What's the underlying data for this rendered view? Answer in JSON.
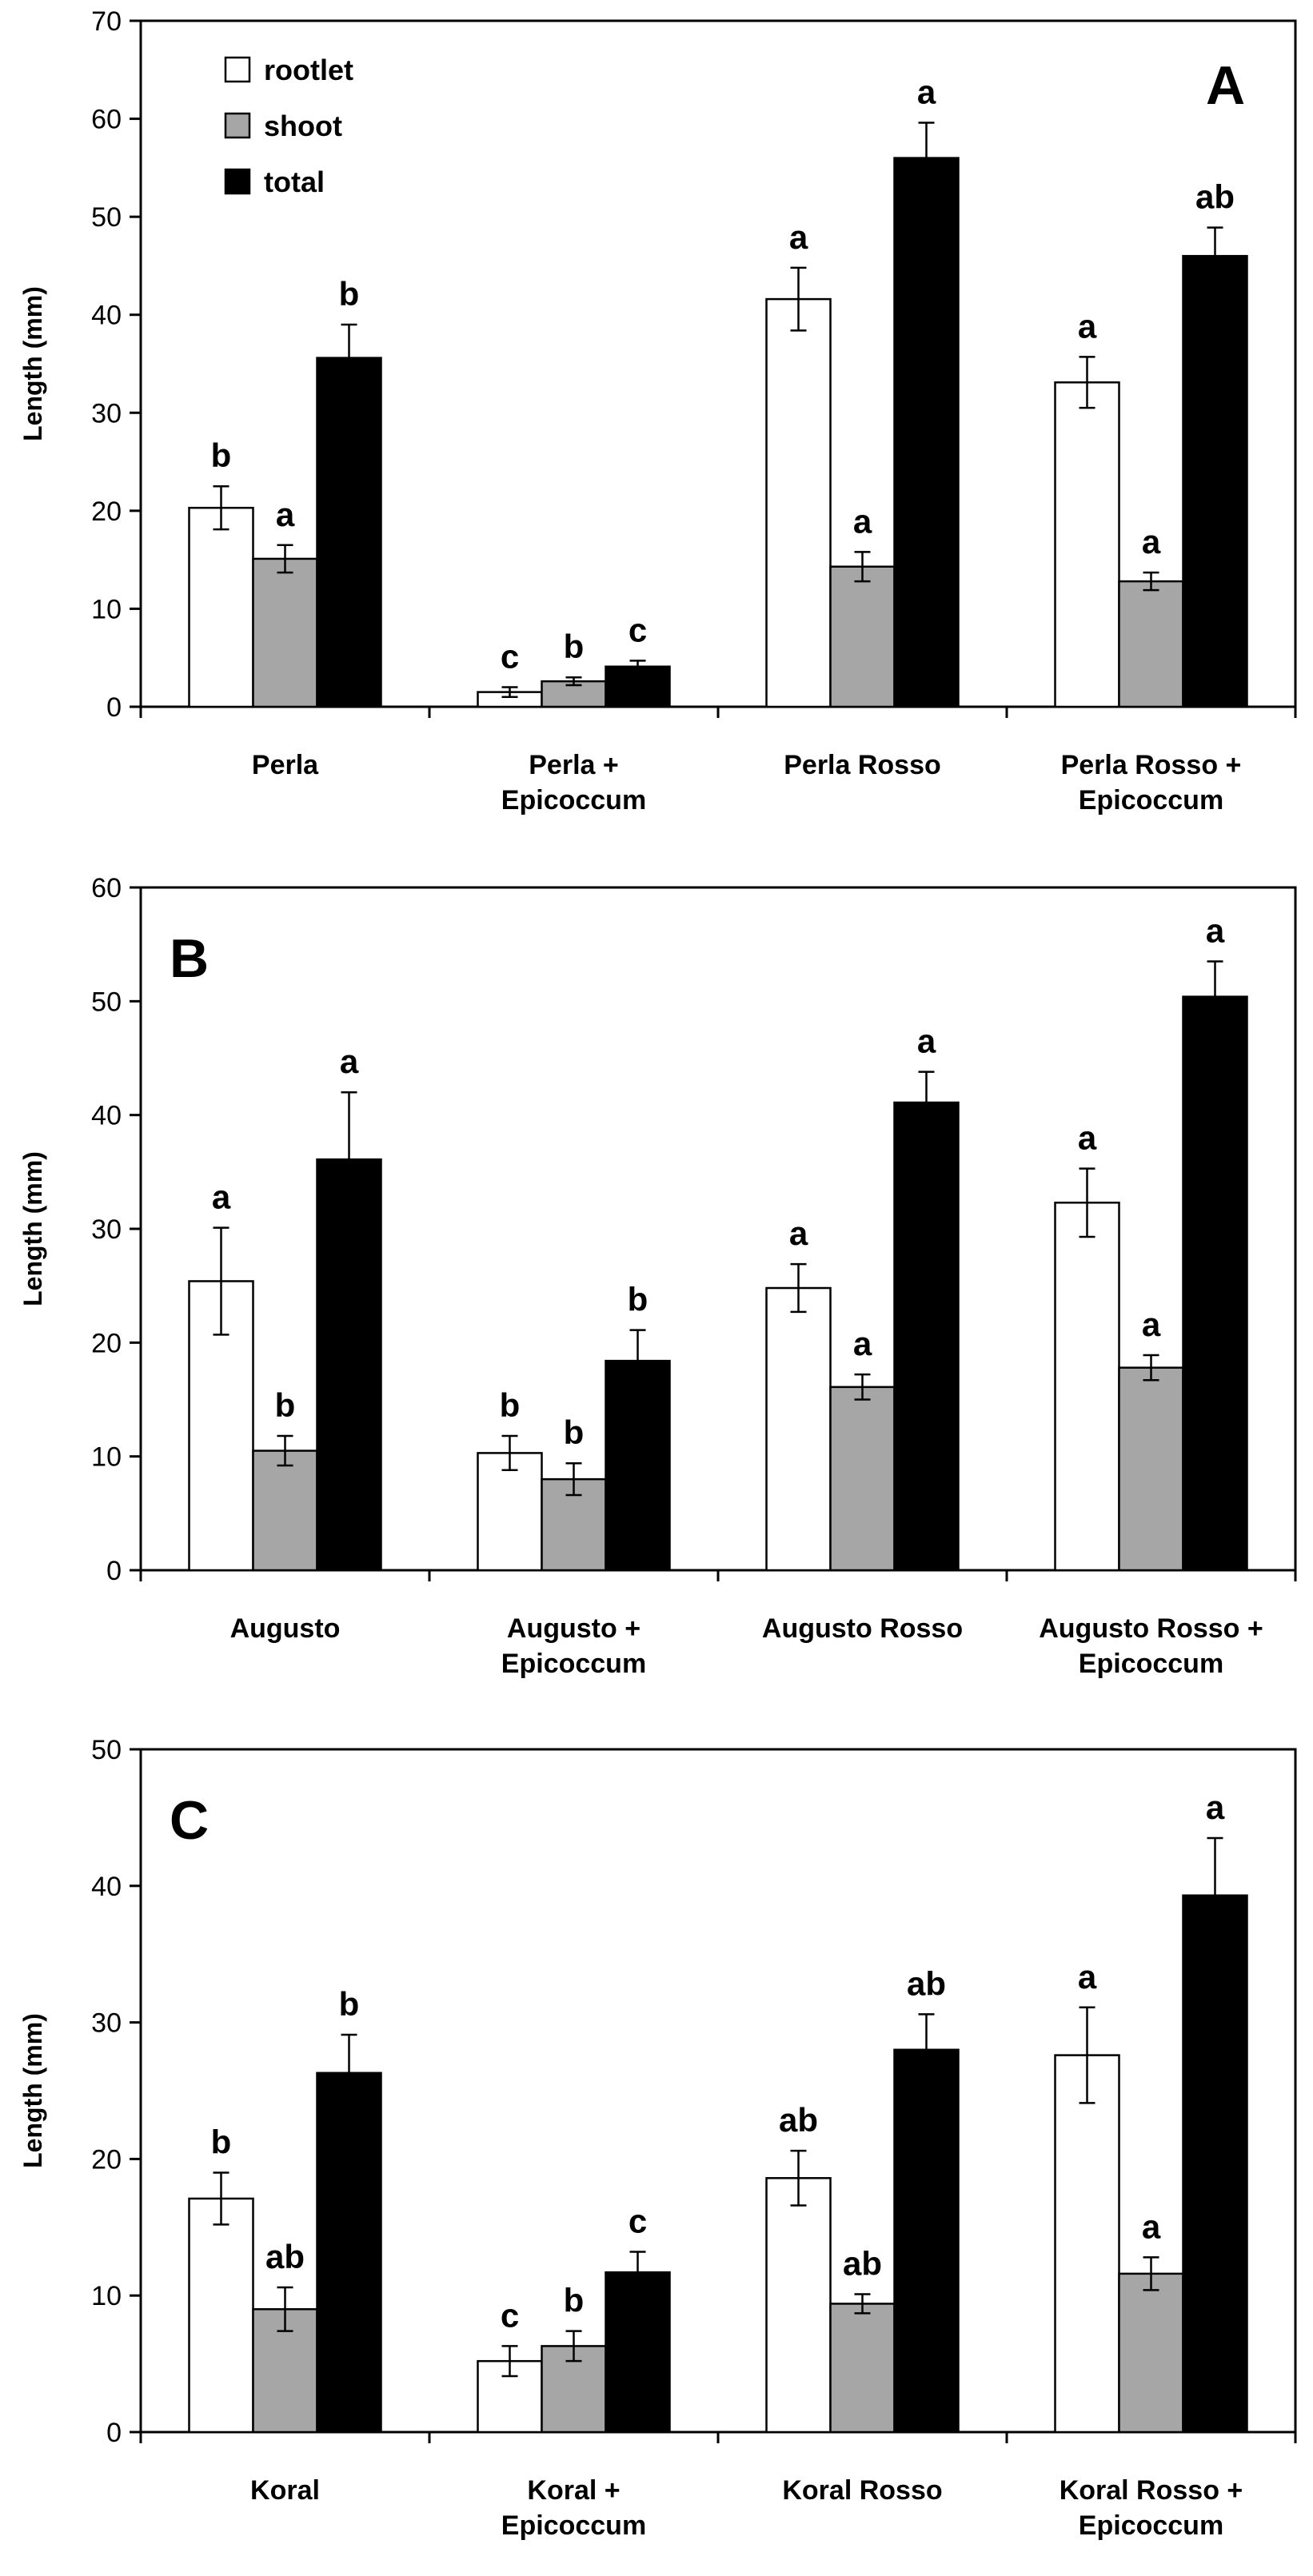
{
  "chart_data": [
    {
      "type": "bar",
      "panel_label": "A",
      "ylabel": "Length (mm)",
      "ylim": [
        0,
        70
      ],
      "yticks": [
        0,
        10,
        20,
        30,
        40,
        50,
        60,
        70
      ],
      "legend_position": "top-left",
      "categories": [
        [
          "Perla"
        ],
        [
          "Perla +",
          "Epicoccum"
        ],
        [
          "Perla Rosso"
        ],
        [
          "Perla Rosso +",
          "Epicoccum"
        ]
      ],
      "series": [
        {
          "name": "rootlet",
          "color": "#ffffff",
          "values": [
            20.3,
            1.5,
            41.6,
            33.1
          ],
          "errors": [
            2.2,
            0.5,
            3.2,
            2.6
          ],
          "letters": [
            "b",
            "c",
            "a",
            "a"
          ]
        },
        {
          "name": "shoot",
          "color": "#a6a6a6",
          "values": [
            15.1,
            2.6,
            14.3,
            12.8
          ],
          "errors": [
            1.4,
            0.4,
            1.5,
            0.9
          ],
          "letters": [
            "a",
            "b",
            "a",
            "a"
          ]
        },
        {
          "name": "total",
          "color": "#000000",
          "values": [
            35.6,
            4.1,
            56.0,
            46.0
          ],
          "errors": [
            3.4,
            0.6,
            3.6,
            2.9
          ],
          "letters": [
            "b",
            "c",
            "a",
            "ab"
          ]
        }
      ]
    },
    {
      "type": "bar",
      "panel_label": "B",
      "ylabel": "Length (mm)",
      "ylim": [
        0,
        60
      ],
      "yticks": [
        0,
        10,
        20,
        30,
        40,
        50,
        60
      ],
      "categories": [
        [
          "Augusto"
        ],
        [
          "Augusto +",
          "Epicoccum"
        ],
        [
          "Augusto Rosso"
        ],
        [
          "Augusto Rosso +",
          "Epicoccum"
        ]
      ],
      "series": [
        {
          "name": "rootlet",
          "color": "#ffffff",
          "values": [
            25.4,
            10.3,
            24.8,
            32.3
          ],
          "errors": [
            4.7,
            1.5,
            2.1,
            3.0
          ],
          "letters": [
            "a",
            "b",
            "a",
            "a"
          ]
        },
        {
          "name": "shoot",
          "color": "#a6a6a6",
          "values": [
            10.5,
            8.0,
            16.1,
            17.8
          ],
          "errors": [
            1.3,
            1.4,
            1.1,
            1.1
          ],
          "letters": [
            "b",
            "b",
            "a",
            "a"
          ]
        },
        {
          "name": "total",
          "color": "#000000",
          "values": [
            36.1,
            18.4,
            41.1,
            50.4
          ],
          "errors": [
            5.9,
            2.7,
            2.7,
            3.1
          ],
          "letters": [
            "a",
            "b",
            "a",
            "a"
          ]
        }
      ]
    },
    {
      "type": "bar",
      "panel_label": "C",
      "ylabel": "Length (mm)",
      "ylim": [
        0,
        50
      ],
      "yticks": [
        0,
        10,
        20,
        30,
        40,
        50
      ],
      "categories": [
        [
          "Koral"
        ],
        [
          "Koral +",
          "Epicoccum"
        ],
        [
          "Koral Rosso"
        ],
        [
          "Koral Rosso +",
          "Epicoccum"
        ]
      ],
      "series": [
        {
          "name": "rootlet",
          "color": "#ffffff",
          "values": [
            17.1,
            5.2,
            18.6,
            27.6
          ],
          "errors": [
            1.9,
            1.1,
            2.0,
            3.5
          ],
          "letters": [
            "b",
            "c",
            "ab",
            "a"
          ]
        },
        {
          "name": "shoot",
          "color": "#a6a6a6",
          "values": [
            9.0,
            6.3,
            9.4,
            11.6
          ],
          "errors": [
            1.6,
            1.1,
            0.7,
            1.2
          ],
          "letters": [
            "ab",
            "b",
            "ab",
            "a"
          ]
        },
        {
          "name": "total",
          "color": "#000000",
          "values": [
            26.3,
            11.7,
            28.0,
            39.3
          ],
          "errors": [
            2.8,
            1.5,
            2.6,
            4.2
          ],
          "letters": [
            "b",
            "c",
            "ab",
            "a"
          ]
        }
      ]
    }
  ]
}
